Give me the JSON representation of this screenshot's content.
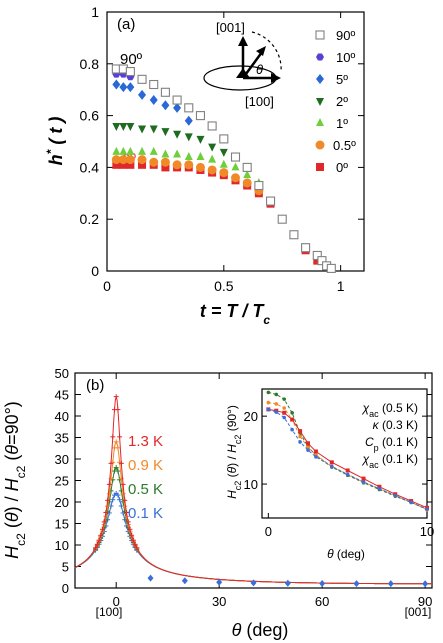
{
  "colors": {
    "90deg": "#808080",
    "10deg": "#5a3fd6",
    "5deg": "#2a68d8",
    "2deg": "#1f6b1f",
    "1deg": "#6fcf3b",
    "0_5deg": "#f08a28",
    "0deg": "#e0282a",
    "curve_0_1K": "#3a6fd8",
    "curve_0_5K": "#2d7a2d",
    "curve_0_9K": "#f08a28",
    "curve_1_3K": "#e0282a"
  },
  "chart_data": [
    {
      "type": "scatter",
      "panel_label": "(a)",
      "xlabel": "t = T / Tc",
      "ylabel": "h*( t )",
      "xlim": [
        0,
        1.1
      ],
      "ylim": [
        0,
        1.0
      ],
      "xticks": [
        "0",
        "0.5",
        "1"
      ],
      "yticks": [
        "0",
        "0.2",
        "0.4",
        "0.6",
        "0.8",
        "1"
      ],
      "annotations": {
        "label_90": "90º",
        "label_0": "0º",
        "dir_001": "[001]",
        "dir_100": "[100]",
        "theta": "θ"
      },
      "series": [
        {
          "name": "90º",
          "marker": "open-square",
          "color_key": "90deg",
          "x": [
            0.04,
            0.07,
            0.1,
            0.15,
            0.2,
            0.25,
            0.3,
            0.35,
            0.4,
            0.45,
            0.5,
            0.55,
            0.6,
            0.65,
            0.7,
            0.75,
            0.8,
            0.85,
            0.9,
            0.92,
            0.94,
            0.96
          ],
          "y": [
            0.78,
            0.78,
            0.77,
            0.74,
            0.72,
            0.69,
            0.66,
            0.63,
            0.6,
            0.56,
            0.51,
            0.44,
            0.4,
            0.33,
            0.27,
            0.2,
            0.14,
            0.09,
            0.06,
            0.04,
            0.02,
            0.01
          ]
        },
        {
          "name": "10º",
          "marker": "hexagon",
          "color_key": "10deg",
          "x": [
            0.04,
            0.07,
            0.1
          ],
          "y": [
            0.76,
            0.76,
            0.75
          ]
        },
        {
          "name": "5º",
          "marker": "diamond",
          "color_key": "5deg",
          "x": [
            0.04,
            0.07,
            0.1,
            0.15,
            0.2,
            0.25,
            0.3,
            0.35
          ],
          "y": [
            0.72,
            0.71,
            0.71,
            0.68,
            0.66,
            0.64,
            0.63,
            0.58
          ]
        },
        {
          "name": "2º",
          "marker": "triangle-down",
          "color_key": "2deg",
          "x": [
            0.04,
            0.07,
            0.1,
            0.15,
            0.2,
            0.25,
            0.3,
            0.35,
            0.4,
            0.45,
            0.5
          ],
          "y": [
            0.56,
            0.56,
            0.56,
            0.55,
            0.55,
            0.54,
            0.53,
            0.52,
            0.51,
            0.48,
            0.46
          ]
        },
        {
          "name": "1º",
          "marker": "triangle-up",
          "color_key": "1deg",
          "x": [
            0.04,
            0.07,
            0.1,
            0.15,
            0.2,
            0.25,
            0.3,
            0.35,
            0.4,
            0.45,
            0.5,
            0.55,
            0.6,
            0.65
          ],
          "y": [
            0.46,
            0.46,
            0.46,
            0.46,
            0.46,
            0.45,
            0.45,
            0.44,
            0.44,
            0.43,
            0.41,
            0.4,
            0.37,
            0.34
          ]
        },
        {
          "name": "0.5º",
          "marker": "circle",
          "color_key": "0_5deg",
          "x": [
            0.04,
            0.07,
            0.1,
            0.15,
            0.2,
            0.25,
            0.3,
            0.35,
            0.4,
            0.45,
            0.5,
            0.55,
            0.6,
            0.65,
            0.7
          ],
          "y": [
            0.43,
            0.43,
            0.43,
            0.43,
            0.42,
            0.42,
            0.41,
            0.41,
            0.4,
            0.39,
            0.38,
            0.36,
            0.34,
            0.31,
            0.27
          ]
        },
        {
          "name": "0º",
          "marker": "square",
          "color_key": "0deg",
          "x": [
            0.04,
            0.07,
            0.1,
            0.15,
            0.2,
            0.25,
            0.3,
            0.35,
            0.4,
            0.45,
            0.5,
            0.55,
            0.6,
            0.65,
            0.7,
            0.75,
            0.8,
            0.85,
            0.9
          ],
          "y": [
            0.41,
            0.41,
            0.41,
            0.41,
            0.41,
            0.4,
            0.4,
            0.4,
            0.39,
            0.38,
            0.37,
            0.35,
            0.33,
            0.3,
            0.26,
            0.2,
            0.14,
            0.08,
            0.04
          ]
        }
      ]
    },
    {
      "type": "line",
      "panel_label": "(b)",
      "xlabel": "θ (deg)",
      "ylabel": "Hc2 (θ) / Hc2 (θ=90°)",
      "xlim": [
        -12,
        92
      ],
      "ylim": [
        0,
        50
      ],
      "xticks": [
        "0",
        "30",
        "60",
        "90"
      ],
      "yticks": [
        "0",
        "5",
        "10",
        "15",
        "20",
        "25",
        "30",
        "35",
        "40",
        "45",
        "50"
      ],
      "x_directions": {
        "left": "[100]",
        "right": "[001]"
      },
      "temperature_labels": [
        {
          "text": "1.3 K",
          "color_key": "curve_1_3K"
        },
        {
          "text": "0.9 K",
          "color_key": "curve_0_9K"
        },
        {
          "text": "0.5 K",
          "color_key": "curve_0_5K"
        },
        {
          "text": "0.1 K",
          "color_key": "curve_0_1K"
        }
      ],
      "series": [
        {
          "name": "1.3 K",
          "color_key": "curve_1_3K",
          "peak": 44.5
        },
        {
          "name": "0.9 K",
          "color_key": "curve_0_9K",
          "peak": 34
        },
        {
          "name": "0.5 K",
          "color_key": "curve_0_5K",
          "peak": 28
        },
        {
          "name": "0.1 K",
          "color_key": "curve_0_1K",
          "peak": 22
        }
      ],
      "tail_points": {
        "x": [
          10,
          20,
          30,
          40,
          50,
          60,
          70,
          80,
          90
        ],
        "y": [
          2.3,
          1.7,
          1.35,
          1.2,
          1.1,
          1.05,
          1.02,
          1.01,
          1.0
        ]
      }
    },
    {
      "type": "line",
      "inset": true,
      "xlabel": "θ (deg)",
      "ylabel": "Hc2 (θ) / Hc2 (90°)",
      "xlim": [
        -0.4,
        10
      ],
      "ylim": [
        5,
        24
      ],
      "xticks": [
        "0",
        "10"
      ],
      "yticks": [
        "10",
        "20"
      ],
      "legend": [
        {
          "text": "χac (0.5 K)",
          "color_key": "curve_0_5K"
        },
        {
          "text": "κ (0.3 K)",
          "color_key": "curve_0_9K"
        },
        {
          "text": "Cp (0.1 K)",
          "color_key": "curve_1_3K"
        },
        {
          "text": "χac (0.1 K)",
          "color_key": "curve_0_1K"
        }
      ],
      "series": [
        {
          "name": "χac (0.5 K)",
          "color_key": "curve_0_5K",
          "x": [
            0,
            0.5,
            1,
            1.5,
            2,
            2.5,
            3,
            4,
            5,
            6,
            7,
            8,
            9,
            10
          ],
          "y": [
            23.5,
            23.2,
            22.5,
            20.5,
            17.5,
            15.5,
            14.2,
            12.5,
            11.3,
            10.2,
            9.2,
            8.2,
            7.3,
            6.3
          ]
        },
        {
          "name": "κ (0.3 K)",
          "color_key": "curve_0_9K",
          "x": [
            0,
            0.5,
            1,
            1.5,
            2,
            2.5,
            3,
            4,
            5,
            6,
            7,
            8,
            9,
            10
          ],
          "y": [
            22.0,
            21.8,
            21.2,
            19.5,
            17.0,
            15.4,
            14.3,
            12.6,
            11.4,
            10.3,
            9.3,
            8.3,
            7.3,
            6.2
          ]
        },
        {
          "name": "Cp (0.1 K)",
          "color_key": "curve_1_3K",
          "x": [
            0,
            0.5,
            1,
            1.5,
            2,
            2.5,
            3,
            4,
            5,
            6,
            7,
            8,
            9,
            10
          ],
          "y": [
            21.0,
            20.8,
            20.5,
            19.5,
            17.8,
            16.0,
            14.8,
            13.2,
            12.0,
            10.8,
            9.6,
            8.5,
            7.5,
            6.5
          ]
        },
        {
          "name": "χac (0.1 K)",
          "color_key": "curve_0_1K",
          "x": [
            0,
            0.5,
            1,
            1.5,
            2,
            2.5,
            3,
            4,
            5,
            6,
            7,
            8,
            9,
            10
          ],
          "y": [
            21.0,
            20.6,
            19.8,
            18.0,
            16.2,
            15.0,
            14.0,
            12.6,
            11.4,
            10.3,
            9.3,
            8.3,
            7.3,
            6.3
          ]
        }
      ]
    }
  ]
}
